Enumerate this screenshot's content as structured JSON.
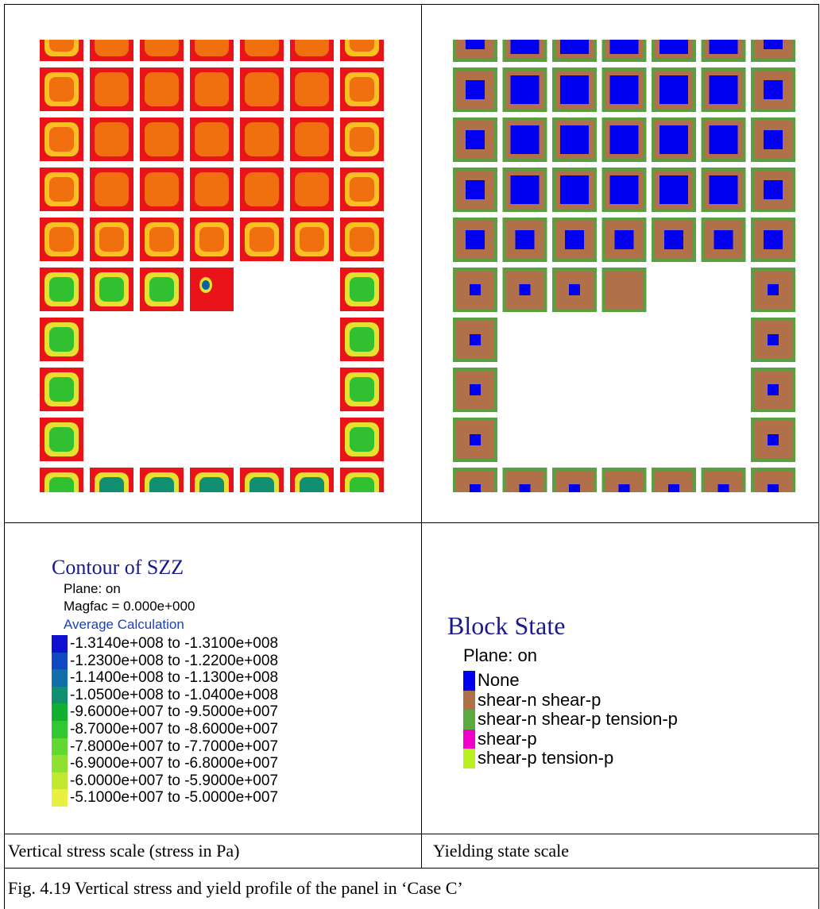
{
  "panels": [
    {
      "legend": {
        "title": "Contour of SZZ",
        "lines": [
          "Plane: on",
          "Magfac = 0.000e+000"
        ],
        "subtitle": "Average Calculation",
        "entries": [
          {
            "label": "-1.3140e+008 to -1.3100e+008",
            "color": "#1010d0"
          },
          {
            "label": "-1.2300e+008 to -1.2200e+008",
            "color": "#1048c0"
          },
          {
            "label": "-1.1400e+008 to -1.1300e+008",
            "color": "#106ea8"
          },
          {
            "label": "-1.0500e+008 to -1.0400e+008",
            "color": "#109070"
          },
          {
            "label": "-9.6000e+007 to -9.5000e+007",
            "color": "#10b030"
          },
          {
            "label": "-8.7000e+007 to -8.6000e+007",
            "color": "#30c830"
          },
          {
            "label": "-7.8000e+007 to -7.7000e+007",
            "color": "#60d830"
          },
          {
            "label": "-6.9000e+007 to -6.8000e+007",
            "color": "#90e030"
          },
          {
            "label": "-6.0000e+007 to -5.9000e+007",
            "color": "#c0e830"
          },
          {
            "label": "-5.1000e+007 to -5.0000e+007",
            "color": "#e8f040"
          }
        ]
      },
      "caption": "Vertical stress scale (stress in Pa)"
    },
    {
      "legend": {
        "title": "Block State",
        "lines": [
          "Plane: on"
        ],
        "entries": [
          {
            "label": "None",
            "color": "#0000f0"
          },
          {
            "label": "shear-n shear-p",
            "color": "#b0704a"
          },
          {
            "label": "shear-n shear-p tension-p",
            "color": "#5aaa40"
          },
          {
            "label": "shear-p",
            "color": "#f000c8"
          },
          {
            "label": "shear-p tension-p",
            "color": "#b8f020"
          }
        ]
      },
      "caption": "Yielding state scale"
    }
  ],
  "figure_caption": "Fig. 4.19 Vertical stress and yield profile of the panel in ‘Case C’"
}
